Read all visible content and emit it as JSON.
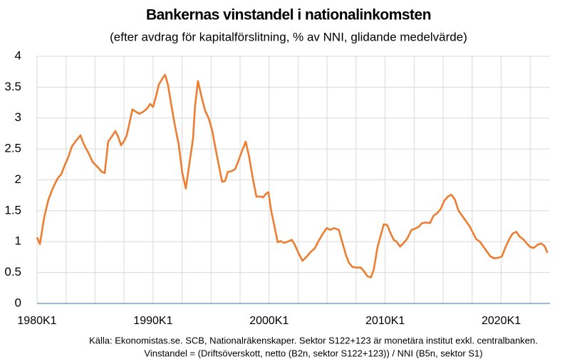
{
  "chart_data": {
    "type": "line",
    "title": "Bankernas vinstandel i nationalinkomsten",
    "subtitle": "(efter avdrag för kapitalförslitning,  % av NNI, glidande medelvärde)",
    "notes": [
      "Källa: Ekonomistas.se. SCB, Nationalräkenskaper. Sektor S122+123 är monetära institut exkl. centralbanken.",
      "Vinstandel = (Driftsöverskott, netto (B2n, sektor S122+123))  / NNI (B5n, sektor S1)"
    ],
    "x": [
      1980,
      1980.25,
      1980.61,
      1980.98,
      1981.35,
      1981.6,
      1981.84,
      1982.09,
      1982.39,
      1982.7,
      1983.0,
      1983.31,
      1983.74,
      1984.05,
      1984.42,
      1984.79,
      1985.21,
      1985.58,
      1985.83,
      1986.13,
      1986.44,
      1986.75,
      1986.99,
      1987.24,
      1987.48,
      1987.73,
      1987.98,
      1988.22,
      1988.53,
      1988.83,
      1989.14,
      1989.51,
      1989.75,
      1990.0,
      1990.25,
      1990.49,
      1990.8,
      1991.04,
      1991.29,
      1991.6,
      1991.9,
      1992.21,
      1992.52,
      1992.82,
      1993.13,
      1993.44,
      1993.62,
      1993.87,
      1994.17,
      1994.48,
      1994.79,
      1995.09,
      1995.4,
      1995.64,
      1995.95,
      1996.2,
      1996.44,
      1996.75,
      1997.06,
      1997.36,
      1997.67,
      1997.98,
      1998.28,
      1998.59,
      1998.9,
      1999.2,
      1999.51,
      1999.75,
      1999.94,
      2000.18,
      2000.49,
      2000.74,
      2000.98,
      2001.29,
      2001.6,
      2001.96,
      2002.21,
      2002.52,
      2002.88,
      2003.25,
      2003.56,
      2003.93,
      2004.23,
      2004.6,
      2004.97,
      2005.28,
      2005.58,
      2006.01,
      2006.32,
      2006.63,
      2006.87,
      2007.18,
      2007.61,
      2007.91,
      2008.22,
      2008.47,
      2008.77,
      2009.02,
      2009.33,
      2009.63,
      2009.88,
      2010.18,
      2010.43,
      2010.74,
      2010.98,
      2011.29,
      2011.6,
      2011.9,
      2012.27,
      2012.58,
      2012.88,
      2013.19,
      2013.5,
      2013.87,
      2014.17,
      2014.48,
      2014.79,
      2015.09,
      2015.4,
      2015.71,
      2016.01,
      2016.32,
      2016.56,
      2016.93,
      2017.24,
      2017.55,
      2017.85,
      2018.16,
      2018.47,
      2018.77,
      2019.08,
      2019.39,
      2019.75,
      2020.06,
      2020.37,
      2020.67,
      2020.98,
      2021.29,
      2021.6,
      2021.9,
      2022.21,
      2022.52,
      2022.82,
      2023.13,
      2023.44,
      2023.74,
      2023.99
    ],
    "series": [
      {
        "color": "#ed7d31",
        "values": [
          1.07,
          0.96,
          1.39,
          1.68,
          1.86,
          1.96,
          2.04,
          2.09,
          2.24,
          2.37,
          2.54,
          2.62,
          2.72,
          2.57,
          2.44,
          2.29,
          2.21,
          2.13,
          2.11,
          2.62,
          2.7,
          2.79,
          2.7,
          2.56,
          2.62,
          2.72,
          2.93,
          3.14,
          3.1,
          3.07,
          3.1,
          3.16,
          3.23,
          3.18,
          3.35,
          3.54,
          3.64,
          3.7,
          3.53,
          3.18,
          2.86,
          2.57,
          2.11,
          1.86,
          2.26,
          2.66,
          3.2,
          3.6,
          3.35,
          3.12,
          3.0,
          2.8,
          2.49,
          2.26,
          1.97,
          1.98,
          2.13,
          2.14,
          2.17,
          2.31,
          2.47,
          2.62,
          2.37,
          2.03,
          1.73,
          1.73,
          1.72,
          1.78,
          1.8,
          1.5,
          1.22,
          0.99,
          1.01,
          0.98,
          1.0,
          1.03,
          0.95,
          0.82,
          0.69,
          0.76,
          0.83,
          0.89,
          1.0,
          1.12,
          1.22,
          1.19,
          1.22,
          1.19,
          0.98,
          0.78,
          0.66,
          0.59,
          0.58,
          0.58,
          0.51,
          0.44,
          0.42,
          0.55,
          0.9,
          1.11,
          1.28,
          1.27,
          1.15,
          1.03,
          1.0,
          0.92,
          0.98,
          1.05,
          1.19,
          1.21,
          1.24,
          1.3,
          1.31,
          1.3,
          1.42,
          1.46,
          1.53,
          1.66,
          1.73,
          1.76,
          1.68,
          1.5,
          1.44,
          1.34,
          1.26,
          1.15,
          1.04,
          1.0,
          0.92,
          0.84,
          0.76,
          0.73,
          0.74,
          0.76,
          0.91,
          1.03,
          1.13,
          1.16,
          1.08,
          1.04,
          0.97,
          0.91,
          0.9,
          0.95,
          0.97,
          0.93,
          0.82
        ]
      }
    ],
    "xlim": [
      1980,
      2024.2
    ],
    "xticks": [
      {
        "value": 1980,
        "label": "1980K1"
      },
      {
        "value": 1990,
        "label": "1990K1"
      },
      {
        "value": 2000,
        "label": "2000K1"
      },
      {
        "value": 2010,
        "label": "2010K1"
      },
      {
        "value": 2020,
        "label": "2020K1"
      }
    ],
    "xgrid": [
      1980,
      1982.5,
      1985,
      1987.5,
      1990,
      1992.5,
      1995,
      1997.5,
      2000,
      2002.5,
      2005,
      2007.5,
      2010,
      2012.5,
      2015,
      2017.5,
      2020,
      2022.5
    ],
    "ylim": [
      0,
      4
    ],
    "yticks": [
      0,
      0.5,
      1,
      1.5,
      2,
      2.5,
      3,
      3.5,
      4
    ],
    "grid": true
  }
}
